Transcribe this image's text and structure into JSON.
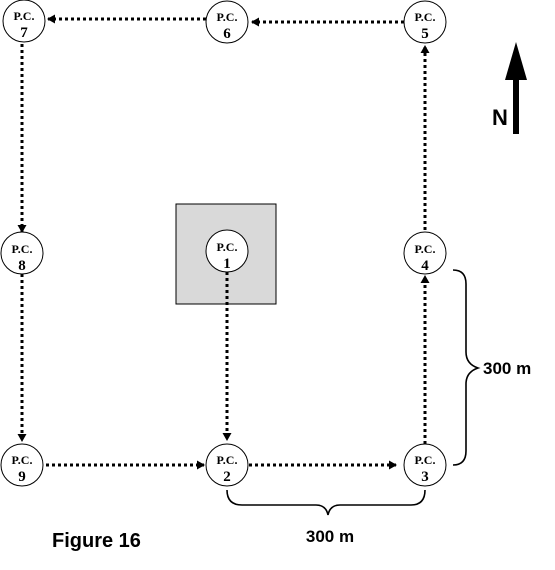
{
  "figure_caption": "Figure 16",
  "north_label": "N",
  "stations": [
    {
      "label": "P.C.",
      "number": "1"
    },
    {
      "label": "P.C.",
      "number": "2"
    },
    {
      "label": "P.C.",
      "number": "3"
    },
    {
      "label": "P.C.",
      "number": "4"
    },
    {
      "label": "P.C.",
      "number": "5"
    },
    {
      "label": "P.C.",
      "number": "6"
    },
    {
      "label": "P.C.",
      "number": "7"
    },
    {
      "label": "P.C.",
      "number": "8"
    },
    {
      "label": "P.C.",
      "number": "9"
    }
  ],
  "route": [
    "1",
    "2",
    "3",
    "4",
    "5",
    "6",
    "7",
    "8",
    "9",
    "2"
  ],
  "dimensions": {
    "horizontal": "300 m",
    "vertical": "300 m"
  },
  "colors": {
    "building_fill": "#d9d9d9",
    "line": "#000000"
  }
}
